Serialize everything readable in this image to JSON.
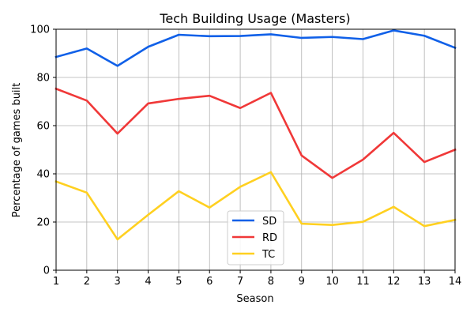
{
  "chart_data": {
    "type": "line",
    "title": "Tech Building Usage (Masters)",
    "xlabel": "Season",
    "ylabel": "Percentage of games built",
    "x": [
      1,
      2,
      3,
      4,
      5,
      6,
      7,
      8,
      9,
      10,
      11,
      12,
      13,
      14
    ],
    "xlim": [
      1,
      14
    ],
    "ylim": [
      0,
      100
    ],
    "xticks": [
      1,
      2,
      3,
      4,
      5,
      6,
      7,
      8,
      9,
      10,
      11,
      12,
      13,
      14
    ],
    "yticks": [
      0,
      20,
      40,
      60,
      80,
      100
    ],
    "grid": true,
    "legend_position": "lower-center",
    "series": [
      {
        "name": "SD",
        "color": "#1060e8",
        "values": [
          88.5,
          92.0,
          84.8,
          92.7,
          97.7,
          97.1,
          97.2,
          97.9,
          96.4,
          96.8,
          95.9,
          99.5,
          97.3,
          92.3
        ]
      },
      {
        "name": "RD",
        "color": "#f03838",
        "values": [
          75.3,
          70.4,
          56.7,
          69.2,
          71.1,
          72.4,
          67.3,
          73.6,
          47.6,
          38.3,
          45.9,
          57.0,
          44.9,
          50.0
        ]
      },
      {
        "name": "TC",
        "color": "#ffd020",
        "values": [
          36.8,
          32.2,
          12.8,
          23.0,
          32.8,
          26.0,
          34.6,
          40.7,
          19.3,
          18.8,
          20.1,
          26.3,
          18.3,
          20.9
        ]
      }
    ]
  }
}
